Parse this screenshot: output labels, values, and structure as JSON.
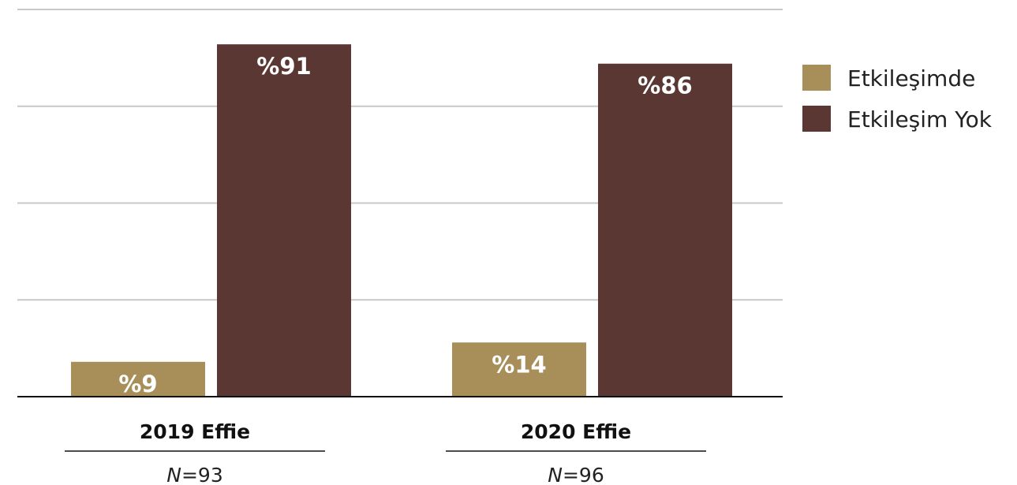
{
  "colors": {
    "engaged": "#a88f5a",
    "not_engaged": "#5b3733",
    "grid": "#c8c8c8",
    "axis": "#111111"
  },
  "chart_data": {
    "type": "bar",
    "categories": [
      "2019 Effie",
      "2020 Effie"
    ],
    "sample_sizes": [
      "=93",
      "=96"
    ],
    "sample_prefix": "N",
    "series": [
      {
        "name": "Etkileşimde",
        "values": [
          9,
          14
        ],
        "labels": [
          "%9",
          "%14"
        ]
      },
      {
        "name": "Etkileşim Yok",
        "values": [
          91,
          86
        ],
        "labels": [
          "%91",
          "%86"
        ]
      }
    ],
    "ylim": [
      0,
      100
    ],
    "grid": true,
    "legend": "top-right",
    "title": "",
    "xlabel": "",
    "ylabel": ""
  }
}
